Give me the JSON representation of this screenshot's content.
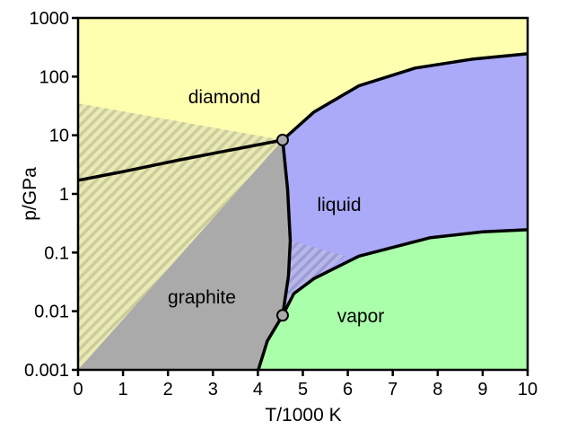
{
  "chart_data": {
    "type": "phase-diagram",
    "xlabel": "T/1000 K",
    "ylabel": "p/GPa",
    "xlim": [
      0,
      10
    ],
    "ylim": [
      0.001,
      1000
    ],
    "yscale": "log",
    "x_ticks": [
      "0",
      "1",
      "2",
      "3",
      "4",
      "5",
      "6",
      "7",
      "8",
      "9",
      "10"
    ],
    "y_ticks": [
      "0.001",
      "0.01",
      "0.1",
      "1",
      "10",
      "100",
      "1000"
    ],
    "grid": false,
    "regions": [
      {
        "label": "diamond",
        "color": "#ffffb0"
      },
      {
        "label": "liquid",
        "color": "#aaaaf8"
      },
      {
        "label": "graphite",
        "color": "#aaaaaa"
      },
      {
        "label": "vapor",
        "color": "#aaffaa"
      }
    ],
    "triple_points": [
      [
        4.55,
        8.3
      ],
      [
        4.55,
        0.0085
      ]
    ],
    "boundaries": {
      "graphite_diamond": [
        [
          0,
          1.7
        ],
        [
          1,
          2.4
        ],
        [
          2.26,
          3.8
        ],
        [
          3.5,
          5.8
        ],
        [
          4.55,
          8.3
        ]
      ],
      "diamond_liquid": [
        [
          4.55,
          8.3
        ],
        [
          5.25,
          25
        ],
        [
          6.25,
          70
        ],
        [
          7.5,
          140
        ],
        [
          8.8,
          200
        ],
        [
          10,
          245
        ]
      ],
      "graphite_liquid": [
        [
          4.55,
          8.3
        ],
        [
          4.66,
          1.2
        ],
        [
          4.72,
          0.16
        ],
        [
          4.68,
          0.04
        ],
        [
          4.55,
          0.0085
        ]
      ],
      "liquid_vapor": [
        [
          4.55,
          0.0085
        ],
        [
          4.8,
          0.02
        ],
        [
          5.25,
          0.036
        ],
        [
          6.25,
          0.087
        ],
        [
          7.84,
          0.18
        ],
        [
          9,
          0.225
        ],
        [
          10,
          0.245
        ]
      ],
      "graphite_vapor": [
        [
          4.55,
          0.0085
        ],
        [
          4.21,
          0.0031
        ],
        [
          4.01,
          0.001
        ]
      ]
    },
    "metastable_regions": [
      {
        "over": "diamond/graphite",
        "points": [
          [
            0,
            35
          ],
          [
            4.55,
            8.3
          ],
          [
            0,
            0.001
          ]
        ],
        "colors": [
          "#cccc9c",
          "#eaeab4"
        ]
      },
      {
        "over": "liquid",
        "points": [
          [
            4.72,
            0.16
          ],
          [
            5.95,
            0.087
          ],
          [
            5.25,
            0.036
          ],
          [
            4.8,
            0.02
          ],
          [
            4.6,
            0.011
          ],
          [
            4.68,
            0.04
          ]
        ],
        "colors": [
          "#9c9cd8",
          "#b8b8e8"
        ]
      }
    ],
    "line_color": "#000000",
    "point_color": "#aaaaaa"
  }
}
